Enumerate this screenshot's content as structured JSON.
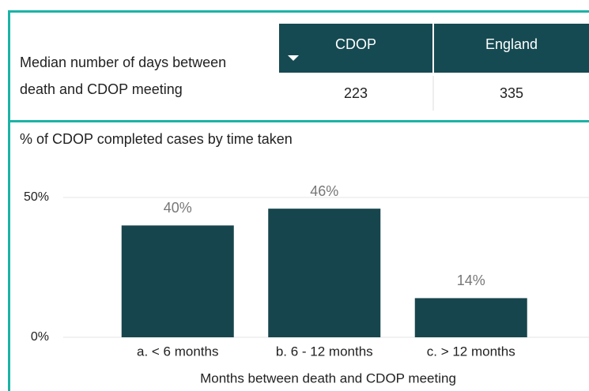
{
  "table": {
    "row_label": "Median number of days between death and CDOP meeting",
    "columns": [
      "CDOP",
      "England"
    ],
    "values": [
      223,
      335
    ]
  },
  "chart_data": {
    "type": "bar",
    "title": "% of CDOP completed cases by time taken",
    "x_label": "Months between death and CDOP meeting",
    "categories": [
      "a. < 6 months",
      "b. 6 - 12 months",
      "c. > 12 months"
    ],
    "values": [
      40,
      46,
      14
    ],
    "value_labels": [
      "40%",
      "46%",
      "14%"
    ],
    "color": "#17454d",
    "ylim": [
      0,
      55
    ],
    "yticks": [
      {
        "value": 0,
        "label": "0%"
      },
      {
        "value": 50,
        "label": "50%"
      }
    ],
    "grid": true
  }
}
